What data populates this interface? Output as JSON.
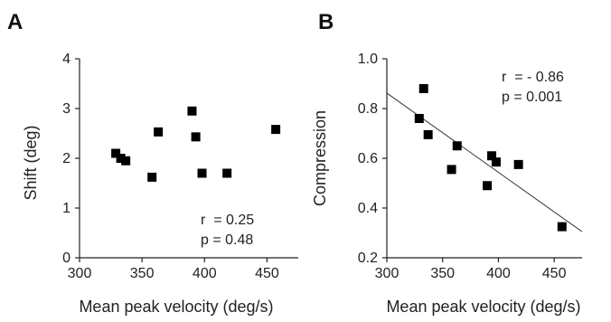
{
  "chart_data": [
    {
      "panel_label": "A",
      "type": "scatter",
      "xlabel": "Mean peak velocity (deg/s)",
      "ylabel": "Shift (deg)",
      "xlim": [
        300,
        475
      ],
      "ylim": [
        0,
        4
      ],
      "xticks": [
        "300",
        "350",
        "400",
        "450"
      ],
      "yticks": [
        "0",
        "1",
        "2",
        "3",
        "4"
      ],
      "points": [
        {
          "x": 329,
          "y": 2.1
        },
        {
          "x": 333,
          "y": 2.0
        },
        {
          "x": 337,
          "y": 1.95
        },
        {
          "x": 358,
          "y": 1.62
        },
        {
          "x": 363,
          "y": 2.53
        },
        {
          "x": 390,
          "y": 2.95
        },
        {
          "x": 393,
          "y": 2.43
        },
        {
          "x": 398,
          "y": 1.7
        },
        {
          "x": 418,
          "y": 1.7
        },
        {
          "x": 457,
          "y": 2.58
        }
      ],
      "annotations": {
        "r": "r  = 0.25",
        "p": "p = 0.48"
      },
      "regression_line": null
    },
    {
      "panel_label": "B",
      "type": "scatter",
      "xlabel": "Mean peak velocity (deg/s)",
      "ylabel": "Compression",
      "xlim": [
        300,
        475
      ],
      "ylim": [
        0.2,
        1.0
      ],
      "xticks": [
        "300",
        "350",
        "400",
        "450"
      ],
      "yticks": [
        "0.2",
        "0.4",
        "0.6",
        "0.8",
        "1.0"
      ],
      "points": [
        {
          "x": 329,
          "y": 0.76
        },
        {
          "x": 333,
          "y": 0.88
        },
        {
          "x": 337,
          "y": 0.695
        },
        {
          "x": 358,
          "y": 0.555
        },
        {
          "x": 363,
          "y": 0.65
        },
        {
          "x": 390,
          "y": 0.49
        },
        {
          "x": 394,
          "y": 0.61
        },
        {
          "x": 398,
          "y": 0.585
        },
        {
          "x": 418,
          "y": 0.575
        },
        {
          "x": 457,
          "y": 0.325
        }
      ],
      "annotations": {
        "r": "r  = - 0.86",
        "p": "p = 0.001"
      },
      "regression_line": {
        "x1": 300,
        "y1": 0.862,
        "x2": 475,
        "y2": 0.305
      }
    }
  ]
}
